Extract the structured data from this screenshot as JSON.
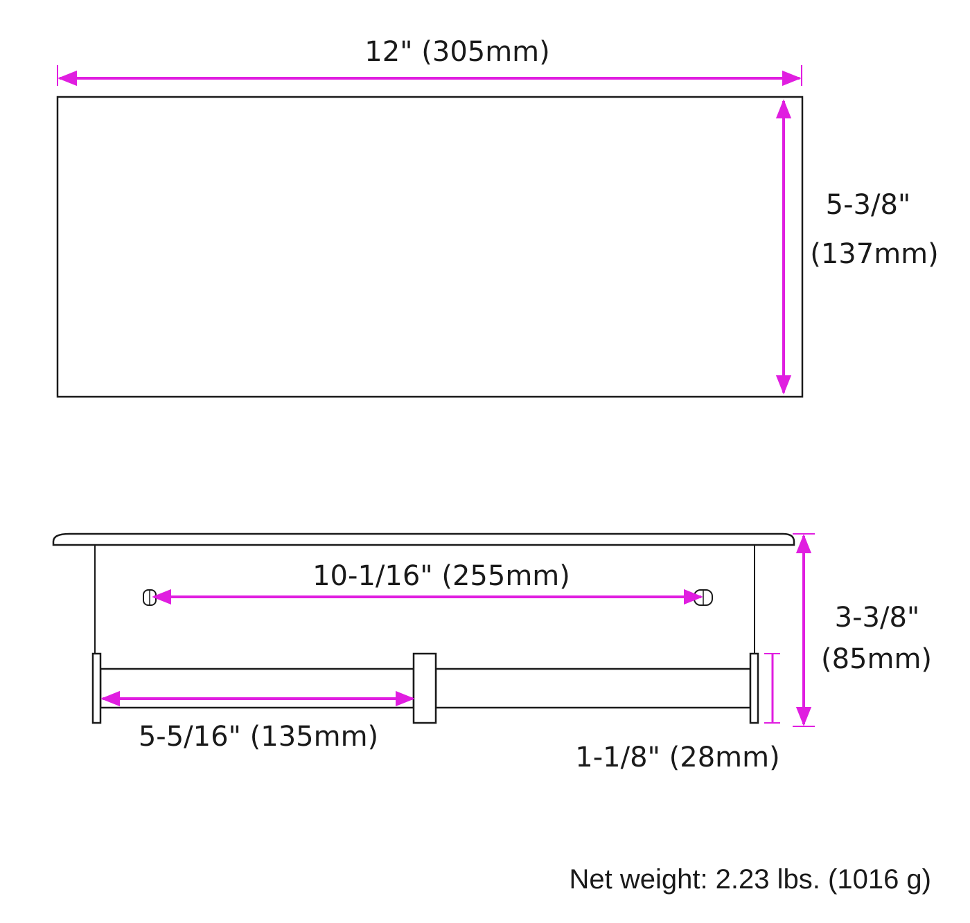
{
  "colors": {
    "dimension": "#e01ee0",
    "outline": "#1a1a1a",
    "background": "#ffffff"
  },
  "top_view": {
    "width_label": "12\" (305mm)",
    "depth_label_line1": "5-3/8\"",
    "depth_label_line2": "(137mm)"
  },
  "front_view": {
    "mount_spacing_label": "10-1/16\" (255mm)",
    "height_label_line1": "3-3/8\"",
    "height_label_line2": "(85mm)",
    "half_length_label": "5-5/16\" (135mm)",
    "rail_height_label": "1-1/8\" (28mm)"
  },
  "footer": {
    "net_weight": "Net weight: 2.23 lbs. (1016 g)"
  }
}
